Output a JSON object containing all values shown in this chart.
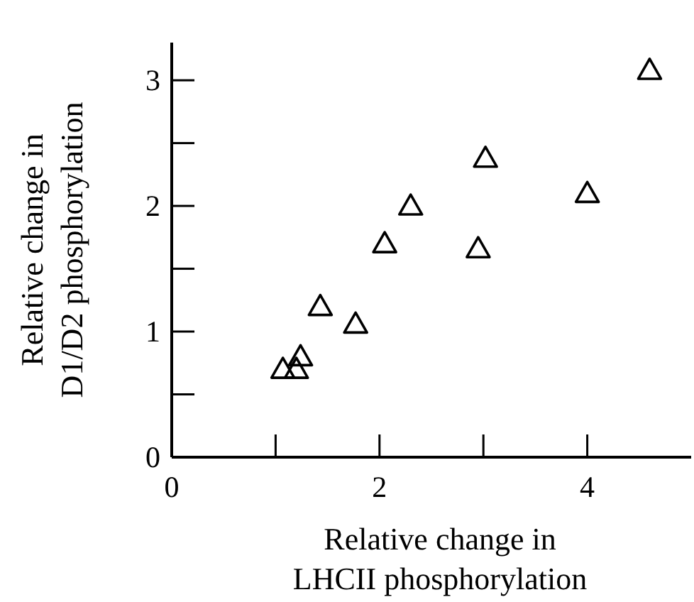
{
  "chart_data": {
    "type": "scatter",
    "xlabel": "Relative change in\nLHCII phosphorylation",
    "ylabel": "Relative change in\nD1/D2 phosphorylation",
    "marker": "triangle",
    "grid": false,
    "x": [
      1.07,
      1.2,
      1.24,
      1.43,
      1.77,
      2.05,
      2.3,
      2.95,
      3.02,
      4.0,
      4.6
    ],
    "values": [
      0.7,
      0.7,
      0.8,
      1.2,
      1.06,
      1.7,
      2.0,
      1.66,
      2.38,
      2.1,
      3.08
    ],
    "color": "#000000",
    "xlim": [
      0,
      5
    ],
    "xticks": [
      0,
      {
        "value": 1,
        "label": null
      },
      2,
      {
        "value": 3,
        "label": null
      },
      4
    ],
    "ylim": [
      0,
      3.3
    ],
    "yticks": [
      0,
      {
        "value": 0.5,
        "label": null
      },
      1,
      {
        "value": 1.5,
        "label": null
      },
      2,
      {
        "value": 2.5,
        "label": null
      },
      3
    ]
  }
}
